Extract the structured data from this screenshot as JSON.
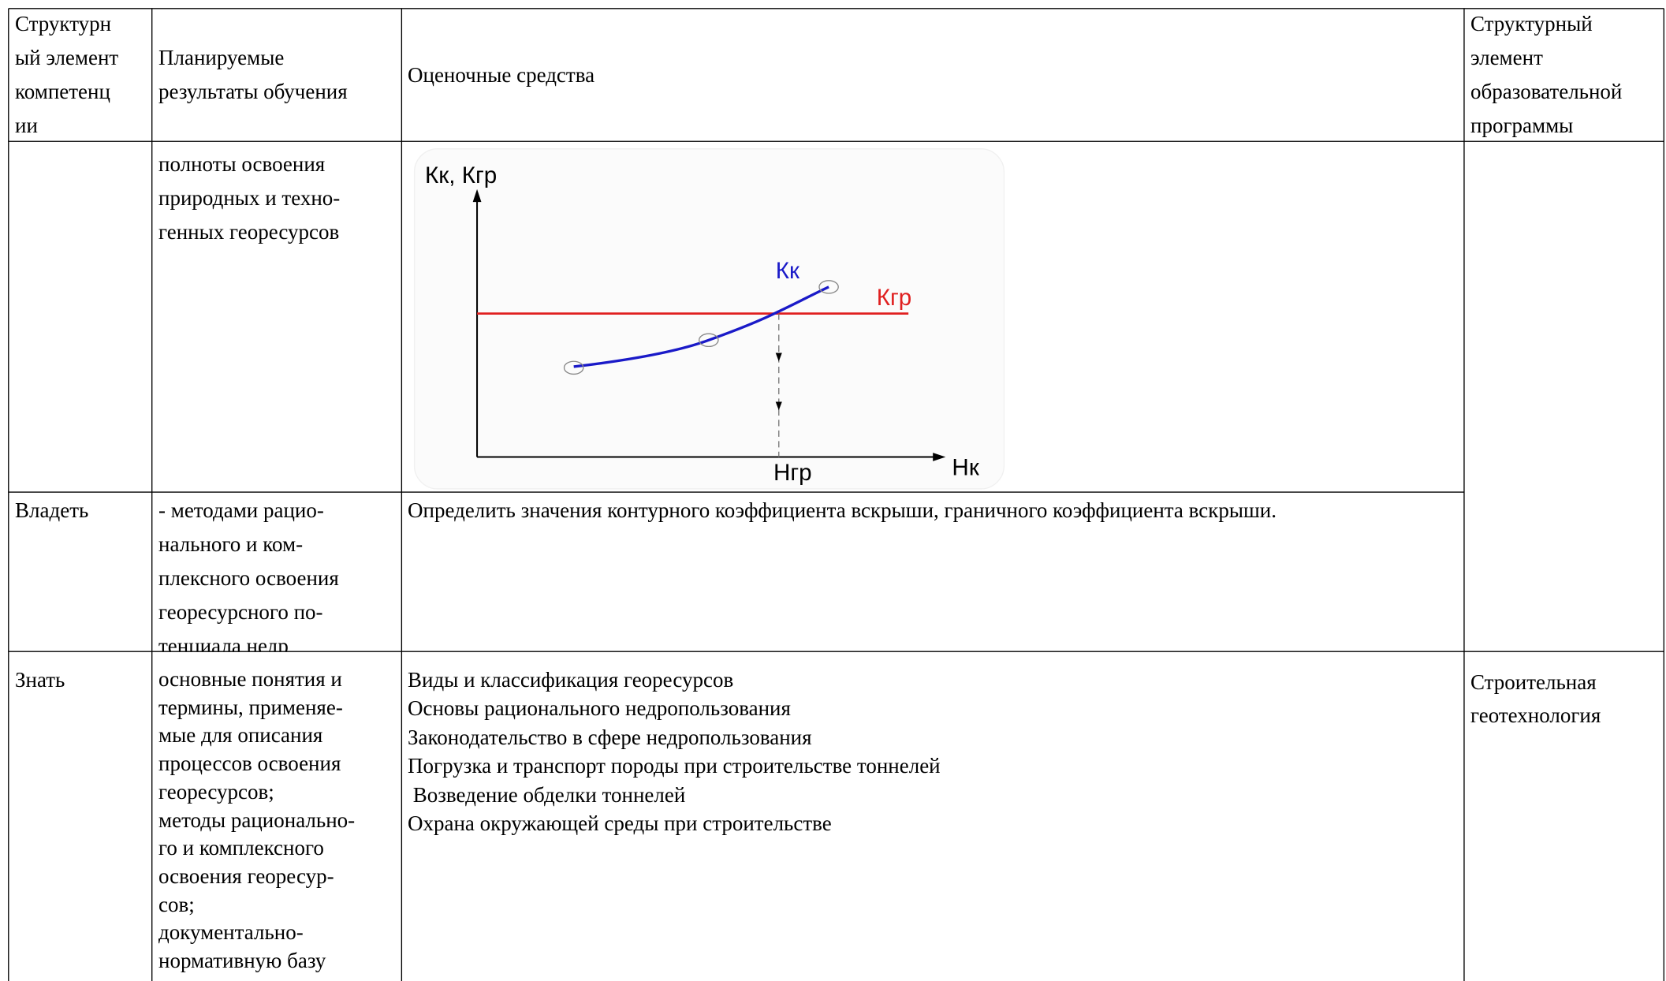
{
  "table": {
    "header": [
      "Структурн\nый элемент\nкомпетенц\nии",
      "Планируемые\nрезультаты обучения",
      "Оценочные средства",
      "Структурный\nэлемент\nобразовательной\nпрограммы"
    ],
    "rows": [
      {
        "results": "полноты освоения\nприродных и техно-\nгенных георесурсов",
        "diagram": {
          "y_axis_label": "Кк, Кгр",
          "x_axis_label": "Нк",
          "curve_label": "Кк",
          "line_label": "Кгр",
          "intersection_label": "Нгр"
        }
      },
      {
        "element": "Владеть",
        "results": "- методами рацио-\nнального и ком-\nплексного освоения\nгеоресурсного по-\nтенциала недр",
        "assessment": "Определить значения контурного коэффициента вскрыши, граничного коэффициента вскрыши."
      },
      {
        "element": "Знать",
        "results": "основные понятия и\nтермины, применяе-\nмые для описания\nпроцессов освоения\nгеоресурсов;\nметоды рационально-\nго и комплексного\nосвоения георесур-\nсов;\nдокументально-\nнормативную базу",
        "assessment": "Виды и классификация георесурсов\nОсновы рационального недропользования\nЗаконодательство в сфере недропользования\nПогрузка и транспорт породы при строительстве тоннелей\n Возведение обделки тоннелей\nОхрана окружающей среды при строительстве",
        "program": "Строительная\nгеотехнология"
      }
    ]
  }
}
